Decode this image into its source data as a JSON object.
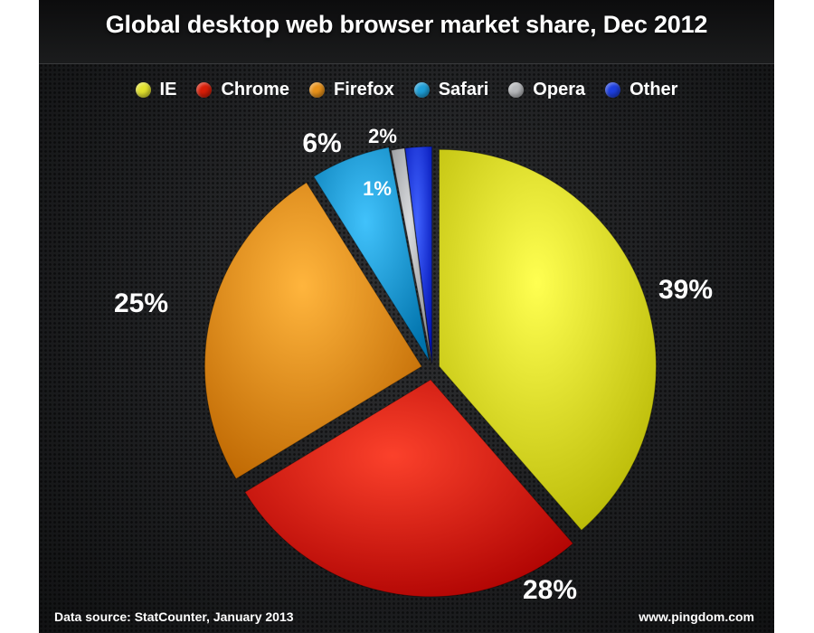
{
  "chart_data": {
    "type": "pie",
    "title": "Global desktop web browser market share, Dec 2012",
    "categories": [
      "IE",
      "Chrome",
      "Firefox",
      "Safari",
      "Opera",
      "Other"
    ],
    "values": [
      39,
      28,
      25,
      6,
      1,
      2
    ],
    "value_labels": [
      "39%",
      "28%",
      "25%",
      "6%",
      "1%",
      "2%"
    ],
    "colors": [
      "#e2e22e",
      "#d81e08",
      "#e9921a",
      "#1e9fd8",
      "#b6b8bb",
      "#1d3fe0"
    ],
    "legend_position": "top-center",
    "exploded": true,
    "source": "Data source: StatCounter, January 2013",
    "credit": "www.pingdom.com"
  }
}
